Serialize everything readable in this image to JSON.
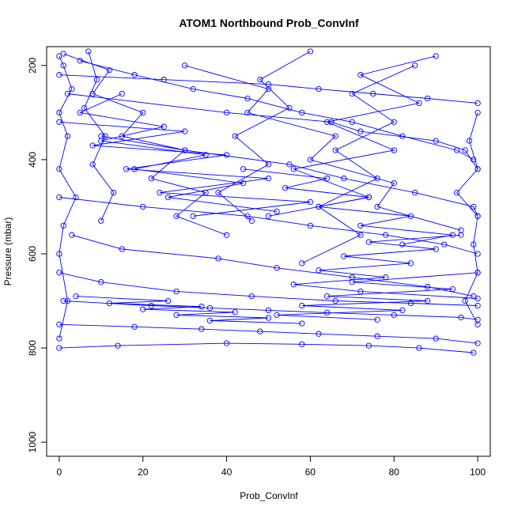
{
  "chart_data": {
    "type": "line",
    "title": "ATOM1 Northbound Prob_ConvInf",
    "xlabel": "Prob_ConvInf",
    "ylabel": "Pressure (mbar)",
    "xlim": [
      -3,
      103
    ],
    "ylim": [
      1030,
      160
    ],
    "y_reversed": true,
    "x_ticks": [
      0,
      20,
      40,
      60,
      80,
      100
    ],
    "y_ticks": [
      200,
      400,
      600,
      800,
      1000
    ],
    "grid": false,
    "legend": "none",
    "marker": "open-circle",
    "series_color": "#0000ff",
    "series": [
      {
        "x": [
          0,
          1,
          3,
          0,
          2,
          0,
          4,
          1,
          0,
          2,
          0
        ],
        "y": [
          180,
          200,
          250,
          300,
          350,
          420,
          480,
          540,
          600,
          700,
          780
        ]
      },
      {
        "x": [
          1,
          12,
          8,
          20,
          15,
          30,
          22,
          35,
          28,
          40
        ],
        "y": [
          175,
          210,
          260,
          300,
          350,
          380,
          440,
          470,
          520,
          560
        ]
      },
      {
        "x": [
          5,
          18,
          32,
          45,
          58,
          70,
          82,
          95,
          99
        ],
        "y": [
          190,
          220,
          250,
          270,
          300,
          320,
          350,
          380,
          400
        ]
      },
      {
        "x": [
          0,
          25,
          50,
          62,
          75,
          88,
          100
        ],
        "y": [
          220,
          230,
          240,
          250,
          260,
          270,
          280
        ]
      },
      {
        "x": [
          2,
          40,
          65,
          72,
          90,
          97,
          100
        ],
        "y": [
          260,
          300,
          320,
          340,
          360,
          380,
          420
        ]
      },
      {
        "x": [
          10,
          30,
          55,
          68,
          85,
          99,
          100
        ],
        "y": [
          350,
          380,
          410,
          440,
          470,
          500,
          520
        ]
      },
      {
        "x": [
          0,
          20,
          45,
          60,
          78,
          92,
          100
        ],
        "y": [
          480,
          500,
          520,
          540,
          560,
          580,
          600
        ]
      },
      {
        "x": [
          3,
          15,
          38,
          52,
          70,
          88,
          99
        ],
        "y": [
          560,
          590,
          610,
          630,
          650,
          670,
          690
        ]
      },
      {
        "x": [
          0,
          10,
          28,
          46,
          66,
          84,
          100
        ],
        "y": [
          640,
          660,
          680,
          690,
          700,
          705,
          710
        ]
      },
      {
        "x": [
          1,
          22,
          36,
          50,
          64,
          80,
          96,
          100
        ],
        "y": [
          700,
          710,
          715,
          720,
          725,
          730,
          735,
          740
        ]
      },
      {
        "x": [
          0,
          18,
          34,
          48,
          62,
          76,
          90,
          100
        ],
        "y": [
          750,
          755,
          760,
          765,
          770,
          775,
          780,
          790
        ]
      },
      {
        "x": [
          0,
          14,
          40,
          58,
          74,
          86,
          99
        ],
        "y": [
          800,
          795,
          790,
          792,
          795,
          800,
          810
        ]
      },
      {
        "x": [
          100,
          98,
          100,
          95,
          100,
          99,
          100,
          97,
          100
        ],
        "y": [
          300,
          360,
          420,
          470,
          520,
          580,
          640,
          700,
          750
        ]
      },
      {
        "x": [
          7,
          9,
          6,
          11,
          8,
          13,
          10
        ],
        "y": [
          170,
          230,
          290,
          350,
          410,
          470,
          530
        ]
      },
      {
        "x": [
          60,
          48,
          55,
          42,
          50,
          38,
          46
        ],
        "y": [
          170,
          230,
          290,
          350,
          410,
          470,
          530
        ]
      },
      {
        "x": [
          85,
          70,
          80,
          66,
          76,
          62,
          72,
          58
        ],
        "y": [
          200,
          260,
          320,
          380,
          440,
          500,
          560,
          620
        ]
      },
      {
        "x": [
          30,
          50,
          45,
          66,
          60,
          80,
          76,
          96
        ],
        "y": [
          200,
          250,
          300,
          350,
          400,
          450,
          500,
          550
        ]
      },
      {
        "x": [
          90,
          72,
          86,
          64,
          80,
          56,
          74,
          50
        ],
        "y": [
          180,
          220,
          280,
          320,
          380,
          420,
          480,
          520
        ]
      },
      {
        "x": [
          0,
          30,
          8,
          40,
          16,
          50,
          24,
          60,
          32
        ],
        "y": [
          320,
          340,
          370,
          390,
          420,
          440,
          470,
          490,
          520
        ]
      },
      {
        "x": [
          100,
          70,
          94,
          64,
          88,
          58,
          82,
          52,
          76
        ],
        "y": [
          640,
          660,
          675,
          690,
          700,
          710,
          720,
          730,
          740
        ]
      },
      {
        "x": [
          4,
          26,
          12,
          34,
          20,
          42,
          28,
          50,
          36,
          58
        ],
        "y": [
          690,
          700,
          705,
          712,
          718,
          724,
          730,
          736,
          742,
          748
        ]
      },
      {
        "x": [
          96,
          74,
          90,
          68,
          84,
          62,
          78,
          56,
          72,
          100
        ],
        "y": [
          560,
          575,
          590,
          605,
          620,
          635,
          650,
          665,
          680,
          695
        ]
      },
      {
        "x": [
          15,
          5,
          25,
          10,
          35,
          18,
          44,
          26,
          52
        ],
        "y": [
          260,
          300,
          330,
          360,
          390,
          420,
          450,
          480,
          510
        ]
      },
      {
        "x": [
          44,
          64,
          54,
          74,
          62,
          84,
          72,
          94,
          82
        ],
        "y": [
          420,
          440,
          460,
          480,
          500,
          520,
          540,
          560,
          580
        ]
      }
    ]
  }
}
